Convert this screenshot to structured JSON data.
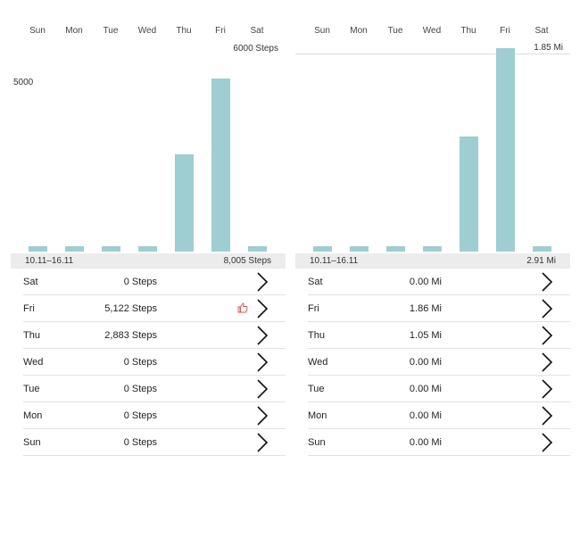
{
  "days": [
    "Sun",
    "Mon",
    "Tue",
    "Wed",
    "Thu",
    "Fri",
    "Sat"
  ],
  "accent_color": "#9ecdd2",
  "steps_panel": {
    "goal_label": "6000 Steps",
    "ytick_label": "5000",
    "range": "10.11–16.11",
    "total": "8,005 Steps",
    "rows": [
      {
        "day": "Sat",
        "value": "0 Steps"
      },
      {
        "day": "Fri",
        "value": "5,122 Steps",
        "badge_icon": "thumbs-up-icon"
      },
      {
        "day": "Thu",
        "value": "2,883 Steps"
      },
      {
        "day": "Wed",
        "value": "0 Steps"
      },
      {
        "day": "Tue",
        "value": "0 Steps"
      },
      {
        "day": "Mon",
        "value": "0 Steps"
      },
      {
        "day": "Sun",
        "value": "0 Steps"
      }
    ]
  },
  "distance_panel": {
    "goal_label": "1.85 Mi",
    "range": "10.11–16.11",
    "total": "2.91 Mi",
    "rows": [
      {
        "day": "Sat",
        "value": "0.00 Mi"
      },
      {
        "day": "Fri",
        "value": "1.86 Mi"
      },
      {
        "day": "Thu",
        "value": "1.05 Mi"
      },
      {
        "day": "Wed",
        "value": "0.00 Mi"
      },
      {
        "day": "Tue",
        "value": "0.00 Mi"
      },
      {
        "day": "Mon",
        "value": "0.00 Mi"
      },
      {
        "day": "Sun",
        "value": "0.00 Mi"
      }
    ]
  },
  "chart_data": [
    {
      "type": "bar",
      "categories": [
        "Sun",
        "Mon",
        "Tue",
        "Wed",
        "Thu",
        "Fri",
        "Sat"
      ],
      "values": [
        0,
        0,
        0,
        0,
        2883,
        5122,
        0
      ],
      "reference_line": 6000,
      "ytick": 5000,
      "ylim": [
        0,
        6000
      ]
    },
    {
      "type": "bar",
      "categories": [
        "Sun",
        "Mon",
        "Tue",
        "Wed",
        "Thu",
        "Fri",
        "Sat"
      ],
      "values": [
        0,
        0,
        0,
        0,
        1.05,
        1.86,
        0
      ],
      "reference_line": 1.85,
      "ylim": [
        0,
        1.85
      ]
    }
  ]
}
